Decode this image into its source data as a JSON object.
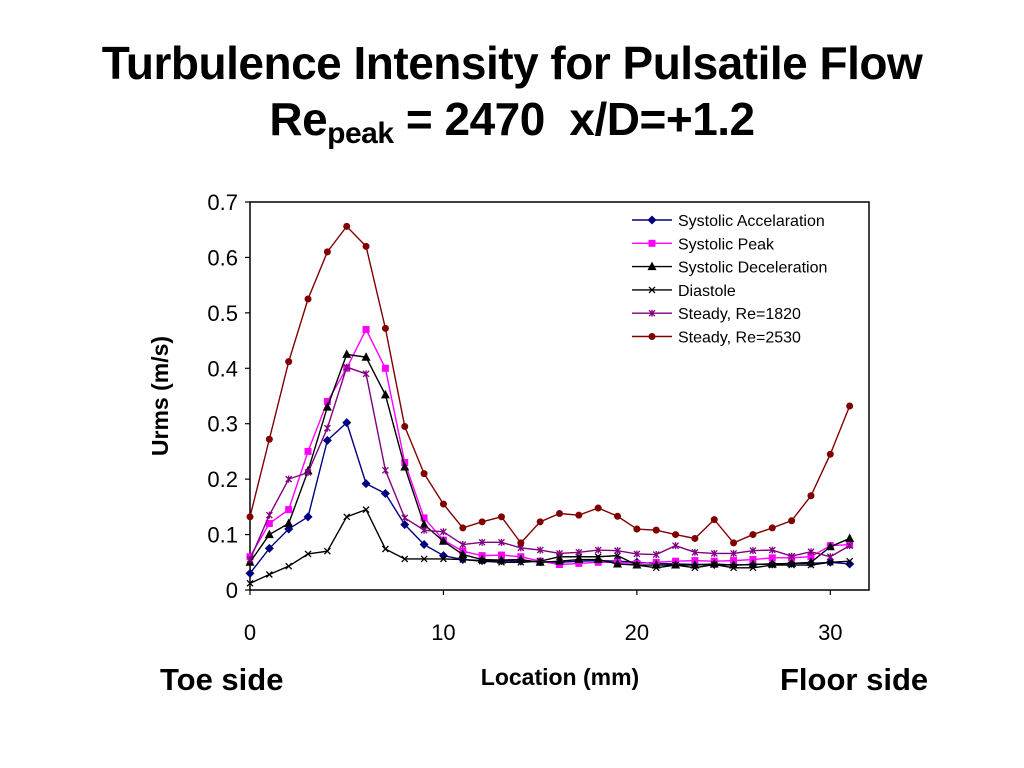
{
  "header": {
    "title_line1": "Turbulence Intensity for Pulsatile Flow",
    "title_re": "Re",
    "title_sub": "peak",
    "title_rest": " = 2470  x/D=+1.2"
  },
  "side_labels": {
    "left": "Toe side",
    "right": "Floor side"
  },
  "chart_data": {
    "type": "line",
    "xlabel": "Location (mm)",
    "ylabel": "Urms (m/s)",
    "xlim": [
      0,
      32
    ],
    "ylim": [
      0,
      0.7
    ],
    "xticks": [
      0,
      10,
      20,
      30
    ],
    "yticks": [
      0,
      0.1,
      0.2,
      0.3,
      0.4,
      0.5,
      0.6,
      0.7
    ],
    "grid": false,
    "legend_position": "top-right",
    "x": [
      0,
      1,
      2,
      3,
      4,
      5,
      6,
      7,
      8,
      9,
      10,
      11,
      12,
      13,
      14,
      15,
      16,
      17,
      18,
      19,
      20,
      21,
      22,
      23,
      24,
      25,
      26,
      27,
      28,
      29,
      30,
      31
    ],
    "series": [
      {
        "name": "Systolic Accelaration",
        "color": "#000080",
        "marker": "diamond",
        "values": [
          0.03,
          0.075,
          0.11,
          0.132,
          0.27,
          0.302,
          0.192,
          0.174,
          0.118,
          0.082,
          0.062,
          0.055,
          0.053,
          0.053,
          0.052,
          0.051,
          0.05,
          0.052,
          0.053,
          0.052,
          0.05,
          0.048,
          0.047,
          0.046,
          0.046,
          0.045,
          0.046,
          0.047,
          0.048,
          0.048,
          0.05,
          0.047
        ]
      },
      {
        "name": "Systolic Peak",
        "color": "#ff00ff",
        "marker": "square",
        "values": [
          0.06,
          0.12,
          0.145,
          0.25,
          0.34,
          0.4,
          0.47,
          0.4,
          0.23,
          0.13,
          0.09,
          0.07,
          0.062,
          0.063,
          0.06,
          0.052,
          0.046,
          0.048,
          0.05,
          0.05,
          0.048,
          0.05,
          0.052,
          0.053,
          0.052,
          0.053,
          0.055,
          0.058,
          0.058,
          0.06,
          0.08,
          0.082
        ]
      },
      {
        "name": "Systolic Deceleration",
        "color": "#000000",
        "marker": "triangle",
        "values": [
          0.05,
          0.1,
          0.12,
          0.215,
          0.33,
          0.425,
          0.42,
          0.352,
          0.222,
          0.118,
          0.088,
          0.064,
          0.055,
          0.054,
          0.055,
          0.05,
          0.052,
          0.055,
          0.055,
          0.047,
          0.045,
          0.045,
          0.045,
          0.045,
          0.047,
          0.045,
          0.046,
          0.047,
          0.048,
          0.05,
          0.078,
          0.093
        ]
      },
      {
        "name": "Diastole",
        "color": "#000000",
        "marker": "x",
        "values": [
          0.012,
          0.028,
          0.043,
          0.065,
          0.07,
          0.132,
          0.145,
          0.074,
          0.056,
          0.056,
          0.056,
          0.055,
          0.052,
          0.05,
          0.05,
          0.052,
          0.06,
          0.06,
          0.06,
          0.062,
          0.045,
          0.04,
          0.045,
          0.04,
          0.046,
          0.04,
          0.04,
          0.045,
          0.045,
          0.045,
          0.05,
          0.052
        ]
      },
      {
        "name": "Steady, Re=1820",
        "color": "#800080",
        "marker": "asterisk",
        "values": [
          0.055,
          0.135,
          0.2,
          0.212,
          0.292,
          0.402,
          0.39,
          0.216,
          0.13,
          0.108,
          0.105,
          0.082,
          0.086,
          0.086,
          0.076,
          0.072,
          0.066,
          0.068,
          0.072,
          0.071,
          0.065,
          0.064,
          0.08,
          0.068,
          0.066,
          0.066,
          0.071,
          0.072,
          0.061,
          0.069,
          0.06,
          0.08
        ]
      },
      {
        "name": "Steady, Re=2530",
        "color": "#800000",
        "marker": "circle",
        "values": [
          0.132,
          0.272,
          0.412,
          0.525,
          0.61,
          0.656,
          0.62,
          0.472,
          0.295,
          0.21,
          0.155,
          0.112,
          0.123,
          0.132,
          0.085,
          0.123,
          0.138,
          0.135,
          0.148,
          0.133,
          0.11,
          0.108,
          0.1,
          0.093,
          0.127,
          0.085,
          0.1,
          0.112,
          0.125,
          0.17,
          0.245,
          0.332
        ]
      }
    ]
  }
}
